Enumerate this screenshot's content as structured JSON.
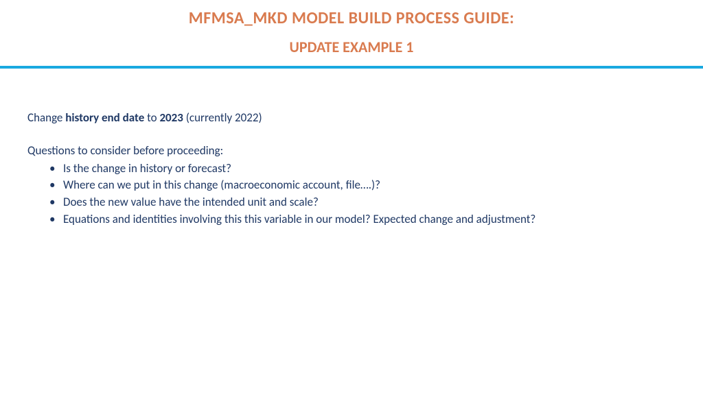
{
  "colors": {
    "title": "#d97b4f",
    "divider": "#1aa9e0",
    "body_text": "#1f3864",
    "background": "#ffffff"
  },
  "typography": {
    "title_fontsize": 24,
    "subtitle_fontsize": 22,
    "body_fontsize": 17
  },
  "header": {
    "title_main": "MFMSA_MKD MODEL BUILD PROCESS GUIDE:",
    "title_sub": "UPDATE EXAMPLE 1"
  },
  "content": {
    "instruction_prefix": "Change ",
    "instruction_bold1": "history end date",
    "instruction_mid": " to ",
    "instruction_bold2": "2023",
    "instruction_suffix": " (currently 2022)",
    "questions_intro": "Questions to consider before proceeding:",
    "bullets": [
      "Is the change in history or forecast?",
      "Where can we put in this change (macroeconomic account, file….)?",
      "Does the new value have the intended unit and scale?",
      "Equations and identities involving this this variable in our model? Expected change and adjustment?"
    ]
  }
}
